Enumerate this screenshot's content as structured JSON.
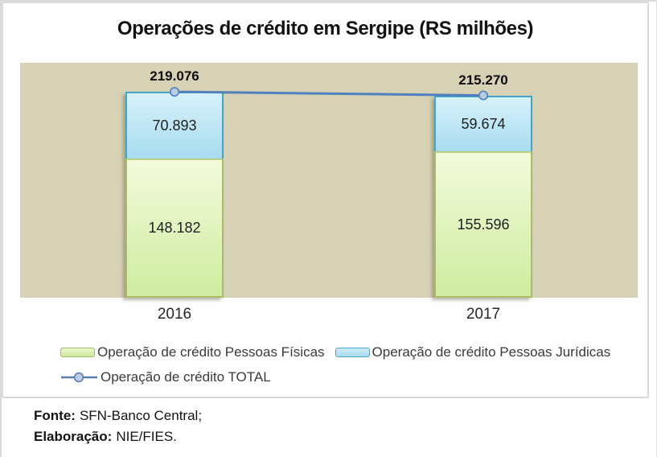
{
  "title": "Operações de crédito em Sergipe (RS milhões)",
  "chart_data": {
    "type": "bar",
    "stacked": true,
    "grid": false,
    "legend_position": "bottom",
    "categories": [
      "2016",
      "2017"
    ],
    "series": [
      {
        "name": "Operação de crédito Pessoas Físicas",
        "values": [
          148182,
          155596
        ],
        "labels": [
          "148.182",
          "155.596"
        ],
        "fill": "#d9efa9",
        "border": "#a8bc6a"
      },
      {
        "name": "Operação de crédito Pessoas Jurídicas",
        "values": [
          70893,
          59674
        ],
        "labels": [
          "70.893",
          "59.674"
        ],
        "fill": "#b5e3f2",
        "border": "#44a6c6"
      }
    ],
    "line_series": {
      "name": "Operação de crédito  TOTAL",
      "values": [
        219076,
        215270
      ],
      "labels": [
        "219.076",
        "215.270"
      ],
      "color": "#4f81bd",
      "marker_fill": "#b9cde4"
    },
    "ylim": [
      0,
      250000
    ],
    "plot_bg": "#d7d1b5"
  },
  "footer": {
    "source_label": "Fonte:",
    "source_text": "SFN-Banco Central;",
    "elaboration_label": "Elaboração:",
    "elaboration_text": "NIE/FIES."
  }
}
